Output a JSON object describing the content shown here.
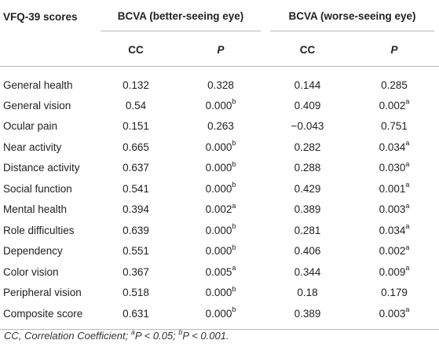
{
  "header": {
    "col0": "VFQ-39 scores",
    "group1": "BCVA (better-seeing eye)",
    "group2": "BCVA (worse-seeing eye)",
    "cc": "CC",
    "p": "P"
  },
  "rows": [
    {
      "label": "General health",
      "cc1": "0.132",
      "p1": "0.328",
      "p1_sup": "",
      "cc2": "0.144",
      "p2": "0.285",
      "p2_sup": ""
    },
    {
      "label": "General vision",
      "cc1": "0.54",
      "p1": "0.000",
      "p1_sup": "b",
      "cc2": "0.409",
      "p2": "0.002",
      "p2_sup": "a"
    },
    {
      "label": "Ocular pain",
      "cc1": "0.151",
      "p1": "0.263",
      "p1_sup": "",
      "cc2": "−0.043",
      "p2": "0.751",
      "p2_sup": ""
    },
    {
      "label": "Near activity",
      "cc1": "0.665",
      "p1": "0.000",
      "p1_sup": "b",
      "cc2": "0.282",
      "p2": "0.034",
      "p2_sup": "a"
    },
    {
      "label": "Distance activity",
      "cc1": "0.637",
      "p1": "0.000",
      "p1_sup": "b",
      "cc2": "0.288",
      "p2": "0.030",
      "p2_sup": "a"
    },
    {
      "label": "Social function",
      "cc1": "0.541",
      "p1": "0.000",
      "p1_sup": "b",
      "cc2": "0.429",
      "p2": "0.001",
      "p2_sup": "a"
    },
    {
      "label": "Mental health",
      "cc1": "0.394",
      "p1": "0.002",
      "p1_sup": "a",
      "cc2": "0.389",
      "p2": "0.003",
      "p2_sup": "a"
    },
    {
      "label": "Role difficulties",
      "cc1": "0.639",
      "p1": "0.000",
      "p1_sup": "b",
      "cc2": "0.281",
      "p2": "0.034",
      "p2_sup": "a"
    },
    {
      "label": "Dependency",
      "cc1": "0.551",
      "p1": "0.000",
      "p1_sup": "b",
      "cc2": "0.406",
      "p2": "0.002",
      "p2_sup": "a"
    },
    {
      "label": "Color vision",
      "cc1": "0.367",
      "p1": "0.005",
      "p1_sup": "a",
      "cc2": "0.344",
      "p2": "0.009",
      "p2_sup": "a"
    },
    {
      "label": "Peripheral vision",
      "cc1": "0.518",
      "p1": "0.000",
      "p1_sup": "b",
      "cc2": "0.18",
      "p2": "0.179",
      "p2_sup": ""
    },
    {
      "label": "Composite score",
      "cc1": "0.631",
      "p1": "0.000",
      "p1_sup": "b",
      "cc2": "0.389",
      "p2": "0.003",
      "p2_sup": "a"
    }
  ],
  "footnote": {
    "text1": "CC, Correlation Coefficient; ",
    "sup_a": "a",
    "text2": "P < 0.05; ",
    "sup_b": "b",
    "text3": "P < 0.001."
  }
}
